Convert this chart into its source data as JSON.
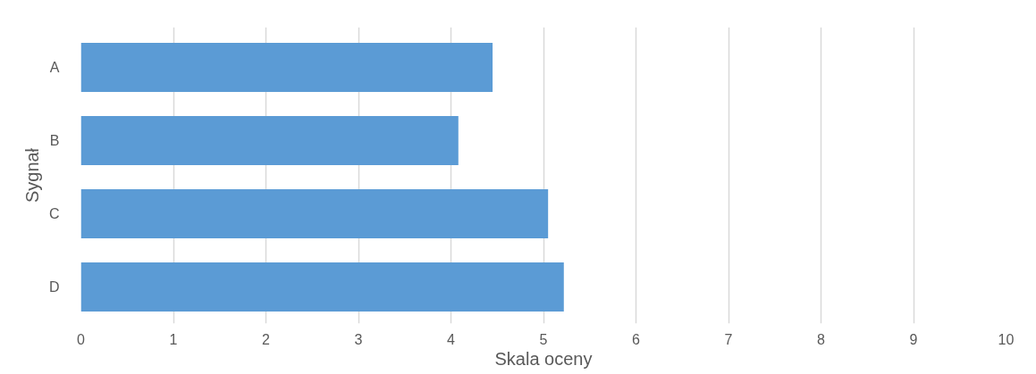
{
  "chart_data": {
    "type": "bar",
    "orientation": "horizontal",
    "xlabel": "Skala oceny",
    "ylabel": "Sygnał",
    "categories": [
      "A",
      "B",
      "C",
      "D"
    ],
    "values": [
      4.45,
      4.08,
      5.05,
      5.22
    ],
    "color": "#5b9bd5",
    "xlim": [
      0,
      10
    ],
    "xticks": [
      0,
      1,
      2,
      3,
      4,
      5,
      6,
      7,
      8,
      9,
      10
    ],
    "grid": "x"
  }
}
